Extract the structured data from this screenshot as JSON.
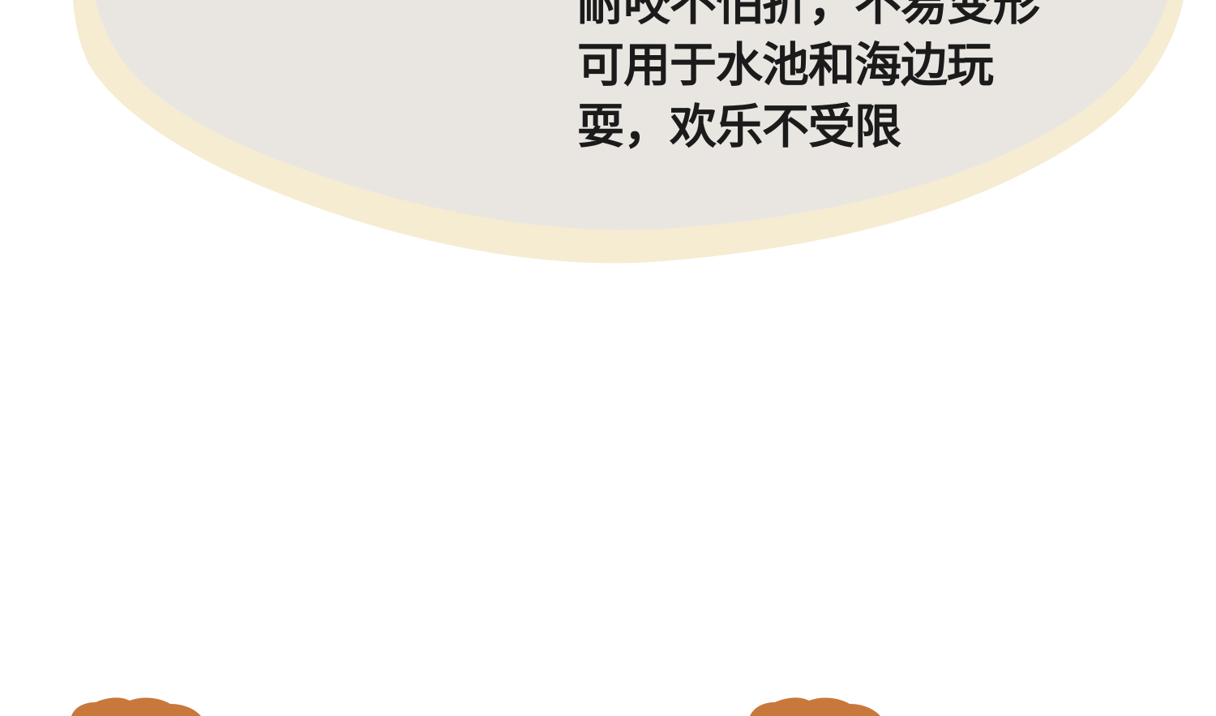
{
  "description": {
    "lines": [
      "耐咬不怕折，不易变形",
      "可用于水池和海边玩",
      "耍，欢乐不受限"
    ]
  },
  "colors": {
    "background": "#ffffff",
    "bubble_fill": "#e9e6e2",
    "bubble_border": "#f5ecd2",
    "blob_accent": "#c9783c",
    "text": "#1b1b1b"
  },
  "decor": {
    "bottom_blob_left_icon": "brown-blob",
    "bottom_blob_right_icon": "brown-blob"
  }
}
